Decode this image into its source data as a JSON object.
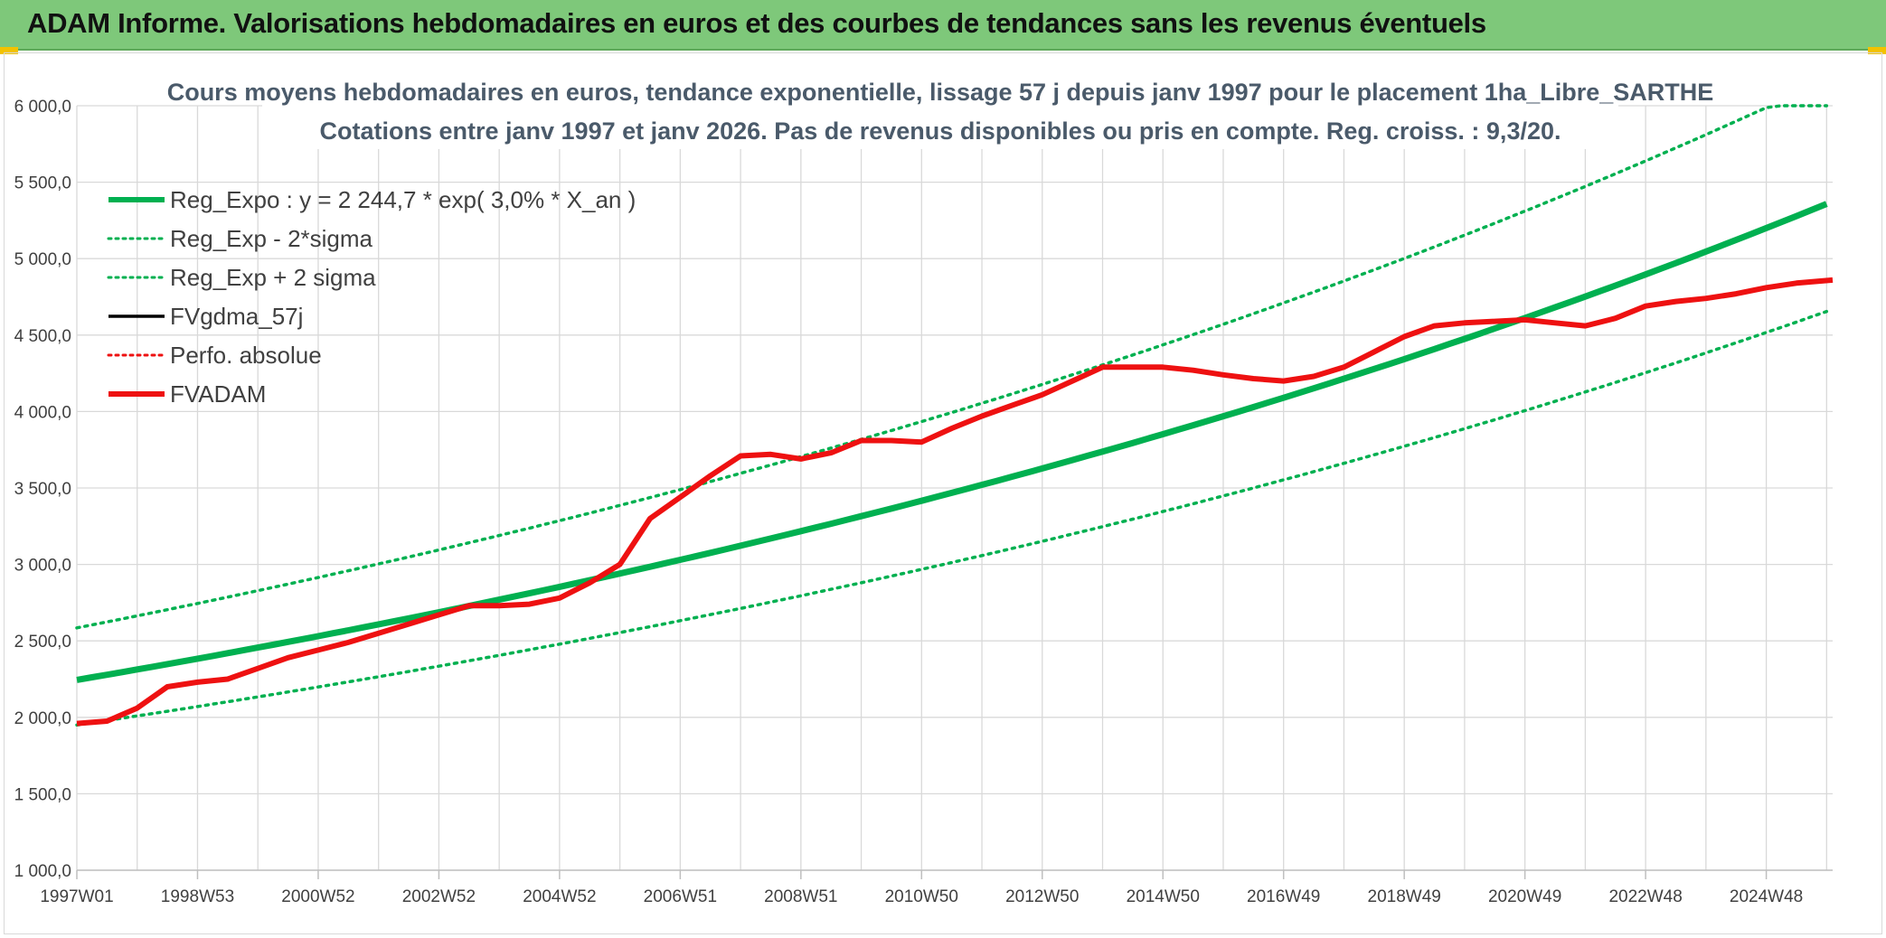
{
  "page": {
    "title": "ADAM Informe. Valorisations hebdomadaires en euros et des courbes de tendances sans les revenus éventuels"
  },
  "colors": {
    "header_bg": "#7ec87a",
    "trend": "#00b050",
    "series_red": "#ee1111",
    "series_black": "#000000",
    "grid": "#d9d9d9"
  },
  "chart_data": {
    "type": "line",
    "title_line1": "Cours moyens hebdomadaires en euros, tendance exponentielle, lissage 57 j depuis janv 1997 pour le placement 1ha_Libre_SARTHE",
    "title_line2": "Cotations entre janv 1997 et janv 2026. Pas de revenus disponibles ou pris en compte. Reg. croiss. : 9,3/20.",
    "xlabel": "",
    "ylabel": "",
    "x_range": [
      1997.0,
      2026.1
    ],
    "ylim": [
      1000,
      6000
    ],
    "y_ticks": [
      {
        "value": 1000,
        "label": "1 000,0"
      },
      {
        "value": 1500,
        "label": "1 500,0"
      },
      {
        "value": 2000,
        "label": "2 000,0"
      },
      {
        "value": 2500,
        "label": "2 500,0"
      },
      {
        "value": 3000,
        "label": "3 000,0"
      },
      {
        "value": 3500,
        "label": "3 500,0"
      },
      {
        "value": 4000,
        "label": "4 000,0"
      },
      {
        "value": 4500,
        "label": "4 500,0"
      },
      {
        "value": 5000,
        "label": "5 000,0"
      },
      {
        "value": 5500,
        "label": "5 500,0"
      },
      {
        "value": 6000,
        "label": "6 000,0"
      }
    ],
    "x_ticks": [
      {
        "x": 1997.0,
        "label": "1997W01"
      },
      {
        "x": 1999.0,
        "label": "1998W53"
      },
      {
        "x": 2001.0,
        "label": "2000W52"
      },
      {
        "x": 2003.0,
        "label": "2002W52"
      },
      {
        "x": 2005.0,
        "label": "2004W52"
      },
      {
        "x": 2007.0,
        "label": "2006W51"
      },
      {
        "x": 2009.0,
        "label": "2008W51"
      },
      {
        "x": 2011.0,
        "label": "2010W50"
      },
      {
        "x": 2013.0,
        "label": "2012W50"
      },
      {
        "x": 2015.0,
        "label": "2014W50"
      },
      {
        "x": 2017.0,
        "label": "2016W49"
      },
      {
        "x": 2019.0,
        "label": "2018W49"
      },
      {
        "x": 2021.0,
        "label": "2020W49"
      },
      {
        "x": 2023.0,
        "label": "2022W48"
      },
      {
        "x": 2025.0,
        "label": "2024W48"
      }
    ],
    "legend": [
      {
        "label": "Reg_Expo : y = 2 244,7 * exp( 3,0% *  X_an )",
        "color": "#00b050",
        "style": "solid-thick"
      },
      {
        "label": "Reg_Exp - 2*sigma",
        "color": "#00b050",
        "style": "dotted"
      },
      {
        "label": "Reg_Exp + 2 sigma",
        "color": "#00b050",
        "style": "dotted"
      },
      {
        "label": "FVgdma_57j",
        "color": "#000000",
        "style": "solid"
      },
      {
        "label": "Perfo. absolue",
        "color": "#ee1111",
        "style": "dotted"
      },
      {
        "label": "FVADAM",
        "color": "#ee1111",
        "style": "solid-thick"
      }
    ],
    "series": [
      {
        "name": "Reg_Expo",
        "kind": "exponential",
        "base": 2244.7,
        "rate": 0.03,
        "x0": 1997.0
      },
      {
        "name": "Reg_Exp - 2*sigma",
        "kind": "exponential",
        "base": 1950,
        "rate": 0.03,
        "x0": 1997.0
      },
      {
        "name": "Reg_Exp + 2 sigma",
        "kind": "exponential",
        "base": 2585,
        "rate": 0.03,
        "x0": 1997.0,
        "cap": 6000
      },
      {
        "name": "FVADAM",
        "kind": "points",
        "x": [
          1997.0,
          1997.5,
          1998.0,
          1998.5,
          1999.0,
          1999.5,
          2000.0,
          2000.5,
          2001.0,
          2001.5,
          2002.0,
          2002.5,
          2003.0,
          2003.5,
          2004.0,
          2004.5,
          2005.0,
          2005.5,
          2006.0,
          2006.5,
          2007.0,
          2007.5,
          2008.0,
          2008.5,
          2009.0,
          2009.5,
          2010.0,
          2010.5,
          2011.0,
          2011.5,
          2012.0,
          2012.5,
          2013.0,
          2013.5,
          2014.0,
          2014.5,
          2015.0,
          2015.5,
          2016.0,
          2016.5,
          2017.0,
          2017.5,
          2018.0,
          2018.5,
          2019.0,
          2019.5,
          2020.0,
          2020.5,
          2021.0,
          2021.5,
          2022.0,
          2022.5,
          2023.0,
          2023.5,
          2024.0,
          2024.5,
          2025.0,
          2025.5,
          2026.1
        ],
        "values": [
          1960,
          1975,
          2060,
          2200,
          2230,
          2250,
          2320,
          2390,
          2440,
          2490,
          2550,
          2610,
          2670,
          2730,
          2730,
          2740,
          2780,
          2880,
          3000,
          3300,
          3440,
          3580,
          3710,
          3720,
          3690,
          3730,
          3810,
          3810,
          3800,
          3890,
          3970,
          4040,
          4110,
          4200,
          4290,
          4290,
          4290,
          4270,
          4240,
          4215,
          4200,
          4230,
          4290,
          4390,
          4490,
          4560,
          4580,
          4590,
          4600,
          4580,
          4560,
          4610,
          4690,
          4720,
          4740,
          4770,
          4810,
          4840,
          4860
        ]
      }
    ]
  }
}
